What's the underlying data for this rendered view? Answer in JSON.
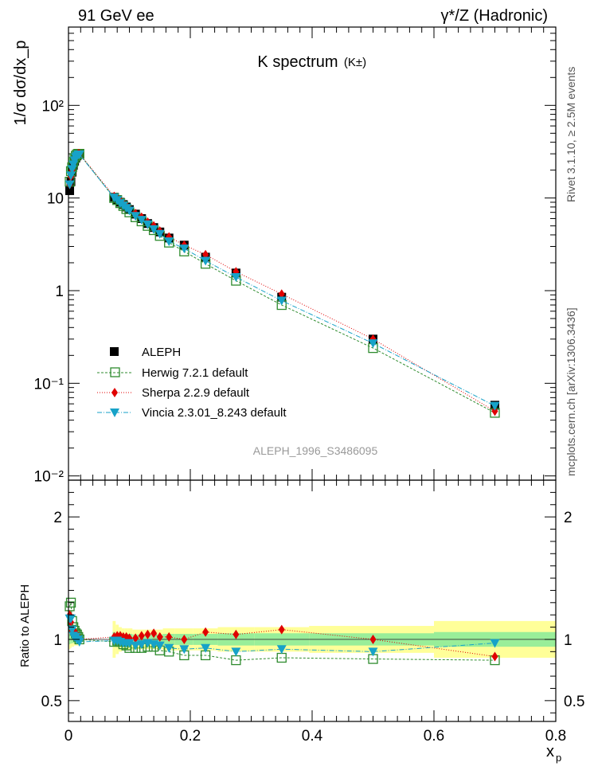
{
  "header": {
    "left": "91 GeV ee",
    "right": "γ*/Z (Hadronic)"
  },
  "side_labels": {
    "rivet": "Rivet 3.1.10, ≥ 2.5M events",
    "mcplots": "mcplots.cern.ch [arXiv:1306.3436]"
  },
  "chart_data": [
    {
      "type": "scatter",
      "title": "K spectrum",
      "subtitle": "(K±)",
      "watermark": "ALEPH_1996_S3486095",
      "ylabel": "1/σ dσ/dx_p",
      "yscale": "log",
      "ylim": [
        0.009,
        700
      ],
      "xlim": [
        0,
        0.8
      ],
      "y_ticks": [
        {
          "v": 0.01,
          "label": "10⁻²"
        },
        {
          "v": 0.1,
          "label": "10⁻¹"
        },
        {
          "v": 1,
          "label": "1"
        },
        {
          "v": 10,
          "label": "10"
        },
        {
          "v": 100,
          "label": "10²"
        }
      ],
      "legend_position": "bottom-left",
      "legend": [
        "ALEPH",
        "Herwig 7.2.1 default",
        "Sherpa 2.2.9 default",
        "Vincia 2.3.01_8.243 default"
      ],
      "x": [
        0.002,
        0.004,
        0.006,
        0.008,
        0.01,
        0.012,
        0.014,
        0.016,
        0.018,
        0.075,
        0.08,
        0.085,
        0.09,
        0.095,
        0.1,
        0.11,
        0.12,
        0.13,
        0.14,
        0.15,
        0.165,
        0.19,
        0.225,
        0.275,
        0.35,
        0.5,
        0.7
      ],
      "series": [
        {
          "name": "ALEPH",
          "color": "#000000",
          "values": [
            12.0,
            15.0,
            19.0,
            22.5,
            25.0,
            27.0,
            28.5,
            29.5,
            30.0,
            10.2,
            9.6,
            9.0,
            8.5,
            8.0,
            7.5,
            6.7,
            6.0,
            5.3,
            4.8,
            4.3,
            3.7,
            3.1,
            2.3,
            1.55,
            0.85,
            0.3,
            0.058
          ]
        },
        {
          "name": "Herwig 7.2.1 default",
          "color": "#2e8b2e",
          "values": [
            15.0,
            19.5,
            21.5,
            24.5,
            27.0,
            28.5,
            29.5,
            30.0,
            30.0,
            10.0,
            9.5,
            8.8,
            8.2,
            7.6,
            7.0,
            6.2,
            5.6,
            5.0,
            4.5,
            3.9,
            3.3,
            2.65,
            1.95,
            1.28,
            0.7,
            0.24,
            0.048
          ]
        },
        {
          "name": "Sherpa 2.2.9 default",
          "color": "#e00000",
          "values": [
            14.0,
            17.0,
            20.0,
            23.5,
            26.0,
            28.0,
            29.0,
            30.0,
            30.0,
            10.4,
            9.9,
            9.3,
            8.7,
            8.2,
            7.6,
            6.8,
            6.2,
            5.5,
            5.0,
            4.4,
            3.8,
            3.1,
            2.45,
            1.6,
            0.92,
            0.3,
            0.05
          ]
        },
        {
          "name": "Vincia 2.3.01_8.243 default",
          "color": "#17a2c8",
          "values": [
            14.0,
            17.5,
            20.5,
            23.0,
            25.5,
            27.5,
            28.5,
            29.5,
            29.5,
            10.1,
            9.5,
            8.8,
            8.3,
            7.8,
            7.3,
            6.4,
            5.8,
            5.2,
            4.6,
            4.1,
            3.4,
            2.85,
            2.1,
            1.4,
            0.78,
            0.27,
            0.057
          ]
        }
      ]
    },
    {
      "type": "scatter",
      "ylabel": "Ratio to ALEPH",
      "xlabel": "x_p",
      "ylim": [
        0.33,
        2.3
      ],
      "xlim": [
        0,
        0.8
      ],
      "y_ticks": [
        {
          "v": 0.5,
          "label": "0.5"
        },
        {
          "v": 1,
          "label": "1"
        },
        {
          "v": 2,
          "label": "2"
        }
      ],
      "x_ticks": [
        {
          "v": 0,
          "label": "0"
        },
        {
          "v": 0.2,
          "label": "0.2"
        },
        {
          "v": 0.4,
          "label": "0.4"
        },
        {
          "v": 0.6,
          "label": "0.6"
        },
        {
          "v": 0.8,
          "label": "0.8"
        }
      ],
      "bands": {
        "x_edges": [
          0.001,
          0.003,
          0.005,
          0.007,
          0.009,
          0.011,
          0.013,
          0.015,
          0.017,
          0.019,
          0.0725,
          0.0775,
          0.0825,
          0.0875,
          0.0925,
          0.0975,
          0.105,
          0.115,
          0.125,
          0.135,
          0.145,
          0.155,
          0.175,
          0.205,
          0.245,
          0.305,
          0.395,
          0.6,
          0.8
        ],
        "yellow": [
          0.08,
          0.07,
          0.06,
          0.06,
          0.05,
          0.05,
          0.05,
          0.05,
          0.05,
          0.0,
          0.15,
          0.12,
          0.1,
          0.09,
          0.09,
          0.09,
          0.08,
          0.08,
          0.08,
          0.08,
          0.08,
          0.09,
          0.09,
          0.09,
          0.1,
          0.1,
          0.11,
          0.15
        ],
        "green": [
          0.04,
          0.035,
          0.03,
          0.03,
          0.03,
          0.03,
          0.03,
          0.03,
          0.03,
          0.0,
          0.06,
          0.05,
          0.05,
          0.045,
          0.045,
          0.045,
          0.04,
          0.04,
          0.04,
          0.04,
          0.04,
          0.045,
          0.045,
          0.045,
          0.05,
          0.05,
          0.05,
          0.06
        ]
      },
      "series": [
        {
          "name": "Herwig 7.2.1 default",
          "color": "#2e8b2e",
          "values": [
            1.27,
            1.3,
            1.15,
            1.1,
            1.07,
            1.05,
            1.04,
            1.02,
            1.0,
            0.98,
            0.99,
            0.98,
            0.96,
            0.95,
            0.93,
            0.93,
            0.93,
            0.94,
            0.94,
            0.91,
            0.9,
            0.87,
            0.87,
            0.83,
            0.85,
            0.84,
            0.83
          ]
        },
        {
          "name": "Sherpa 2.2.9 default",
          "color": "#e00000",
          "values": [
            1.2,
            1.14,
            1.07,
            1.05,
            1.05,
            1.05,
            1.02,
            1.02,
            1.0,
            1.02,
            1.03,
            1.03,
            1.02,
            1.02,
            1.01,
            1.01,
            1.03,
            1.04,
            1.05,
            1.02,
            1.02,
            1.0,
            1.06,
            1.04,
            1.08,
            1.0,
            0.86
          ]
        },
        {
          "name": "Vincia 2.3.01_8.243 default",
          "color": "#17a2c8",
          "values": [
            1.17,
            1.17,
            1.08,
            1.03,
            1.02,
            1.02,
            1.0,
            1.0,
            0.98,
            0.99,
            0.99,
            0.98,
            0.97,
            0.97,
            0.97,
            0.95,
            0.96,
            0.97,
            0.96,
            0.95,
            0.93,
            0.92,
            0.93,
            0.9,
            0.92,
            0.9,
            0.97
          ]
        }
      ]
    }
  ]
}
